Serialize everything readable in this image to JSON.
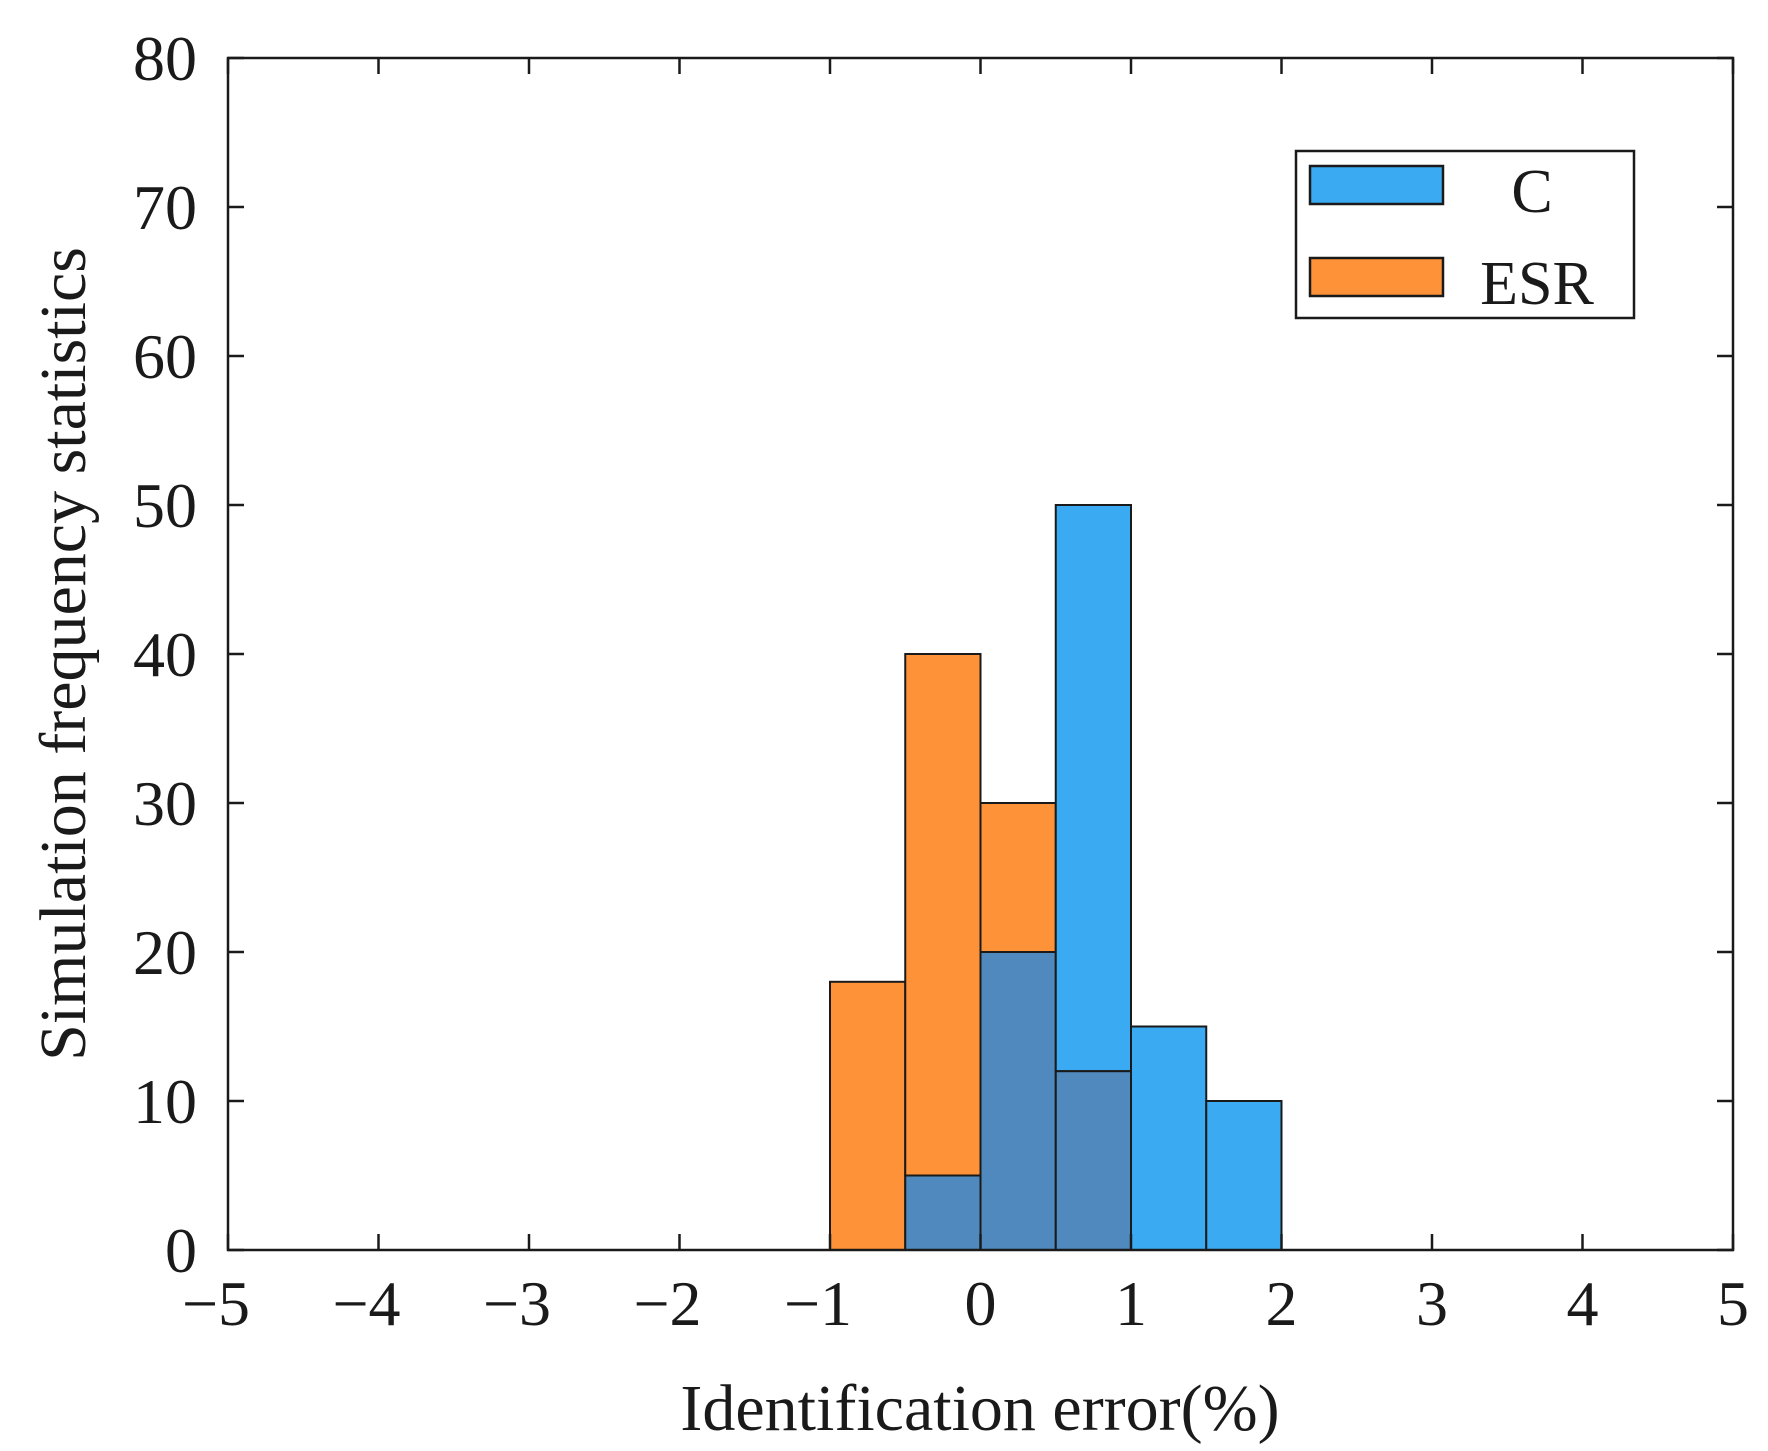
{
  "chart_data": {
    "type": "bar",
    "subtype": "histogram",
    "title": "",
    "xlabel": "Identification error(%)",
    "ylabel": "Simulation frequency statistics",
    "xlim": [
      -5,
      5
    ],
    "ylim": [
      0,
      80
    ],
    "xticks": [
      -5,
      -4,
      -3,
      -2,
      -1,
      0,
      1,
      2,
      3,
      4,
      5
    ],
    "yticks": [
      0,
      10,
      20,
      30,
      40,
      50,
      60,
      70,
      80
    ],
    "xtick_labels": [
      "−5",
      "−4",
      "−3",
      "−2",
      "−1",
      "0",
      "1",
      "2",
      "3",
      "4",
      "5"
    ],
    "ytick_labels": [
      "0",
      "10",
      "20",
      "30",
      "40",
      "50",
      "60",
      "70",
      "80"
    ],
    "bin_edges": [
      -1.0,
      -0.5,
      0.0,
      0.5,
      1.0,
      1.5,
      2.0
    ],
    "series": [
      {
        "name": "C",
        "color": "#3aabf3",
        "values": [
          0,
          5,
          20,
          50,
          15,
          10
        ]
      },
      {
        "name": "ESR",
        "color": "#fe9238",
        "values": [
          18,
          40,
          30,
          12,
          0,
          0
        ]
      }
    ],
    "overlap_color": "#4f89bd",
    "legend_position": "top-right",
    "grid": false
  }
}
